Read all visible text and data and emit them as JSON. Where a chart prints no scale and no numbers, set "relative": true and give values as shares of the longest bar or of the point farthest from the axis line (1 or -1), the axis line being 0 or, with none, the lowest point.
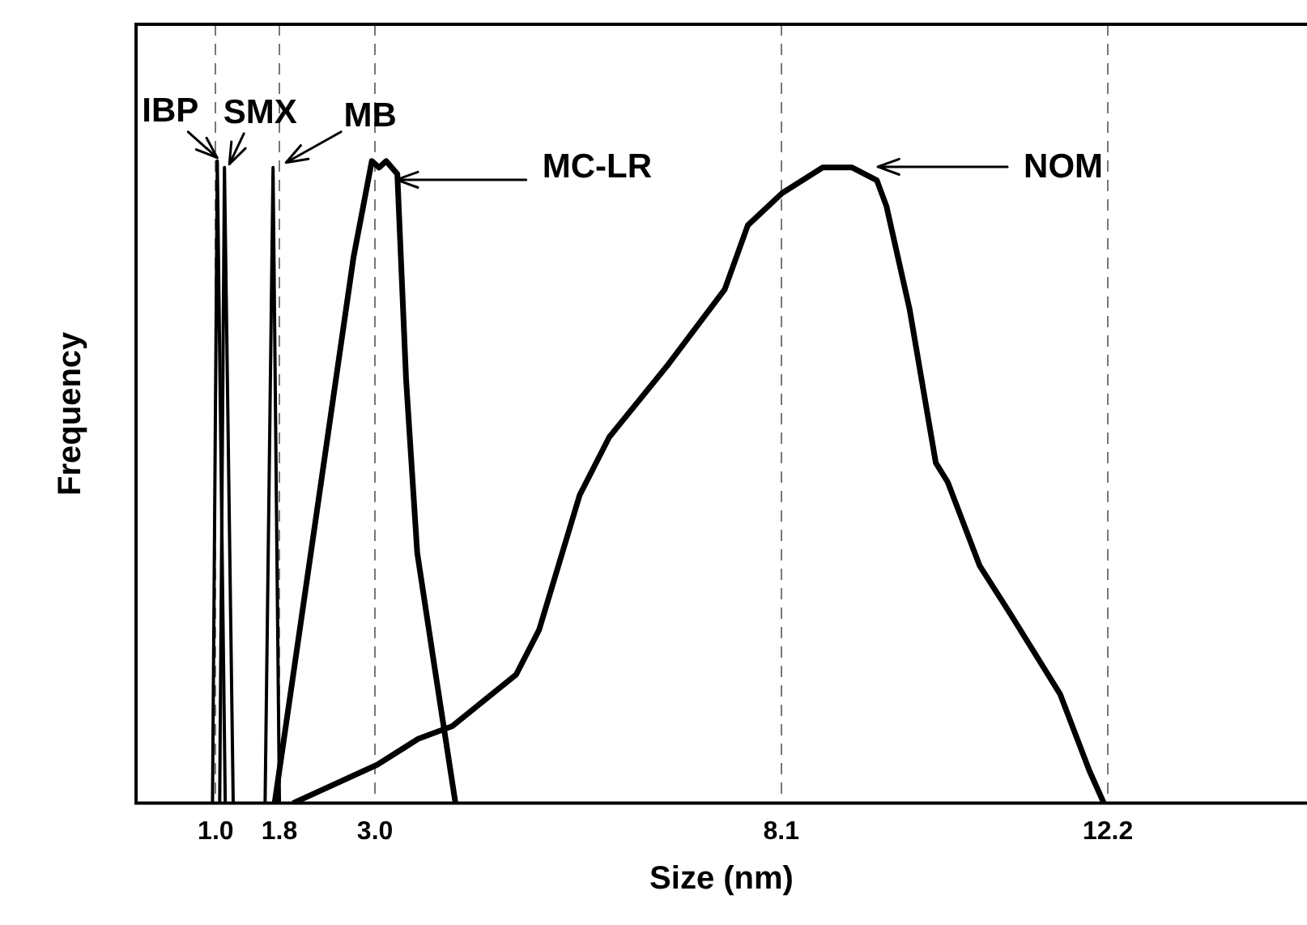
{
  "chart_data": {
    "type": "line",
    "xlabel": "Size (nm)",
    "ylabel": "Frequency",
    "relative": true,
    "xlim": [
      0,
      14.7
    ],
    "xticks": [
      {
        "value": 1.0,
        "label": "1.0"
      },
      1.8,
      {
        "value": 3.0,
        "label": "3.0"
      },
      8.1,
      12.2
    ],
    "grid": "x",
    "marker": "none",
    "line_style": "solid",
    "annotations": [
      {
        "text": "IBP",
        "x": 1.02,
        "y": 1.0
      },
      {
        "text": "SMX",
        "x": 1.11,
        "y": 0.99
      },
      {
        "text": "MB",
        "x": 1.72,
        "y": 0.99
      },
      "MC-LR",
      "NOM"
    ],
    "series": [
      {
        "color": "#000000",
        "x": [
          0.96,
          1.02,
          1.12
        ],
        "values": [
          0,
          1.0,
          0
        ]
      },
      {
        "color": "#000000",
        "x": [
          1.05,
          1.11,
          1.22
        ],
        "values": [
          0,
          0.99,
          0
        ]
      },
      {
        "color": "#000000",
        "x": [
          1.62,
          1.72,
          1.8
        ],
        "values": [
          0,
          0.99,
          0
        ]
      },
      {
        "color": "#000000",
        "x": [
          1.74,
          2.3,
          2.73,
          2.96,
          3.05,
          3.14,
          3.28,
          3.39,
          3.53,
          3.75,
          4.01
        ],
        "values": [
          0,
          0.48,
          0.85,
          1.0,
          0.99,
          1.0,
          0.98,
          0.66,
          0.39,
          0.21,
          0
        ]
      },
      {
        "color": "#000000",
        "x": [
          1.97,
          3.03,
          3.54,
          3.97,
          4.77,
          5.06,
          5.57,
          5.94,
          6.66,
          7.39,
          7.68,
          8.11,
          8.62,
          8.99,
          9.3,
          9.42,
          9.71,
          10.04,
          10.19,
          10.59,
          10.95,
          11.6,
          11.97,
          12.15
        ],
        "values": [
          0,
          0.06,
          0.1,
          0.12,
          0.2,
          0.27,
          0.48,
          0.57,
          0.68,
          0.8,
          0.9,
          0.95,
          0.99,
          0.99,
          0.97,
          0.93,
          0.77,
          0.53,
          0.5,
          0.37,
          0.3,
          0.17,
          0.05,
          0
        ]
      }
    ]
  }
}
